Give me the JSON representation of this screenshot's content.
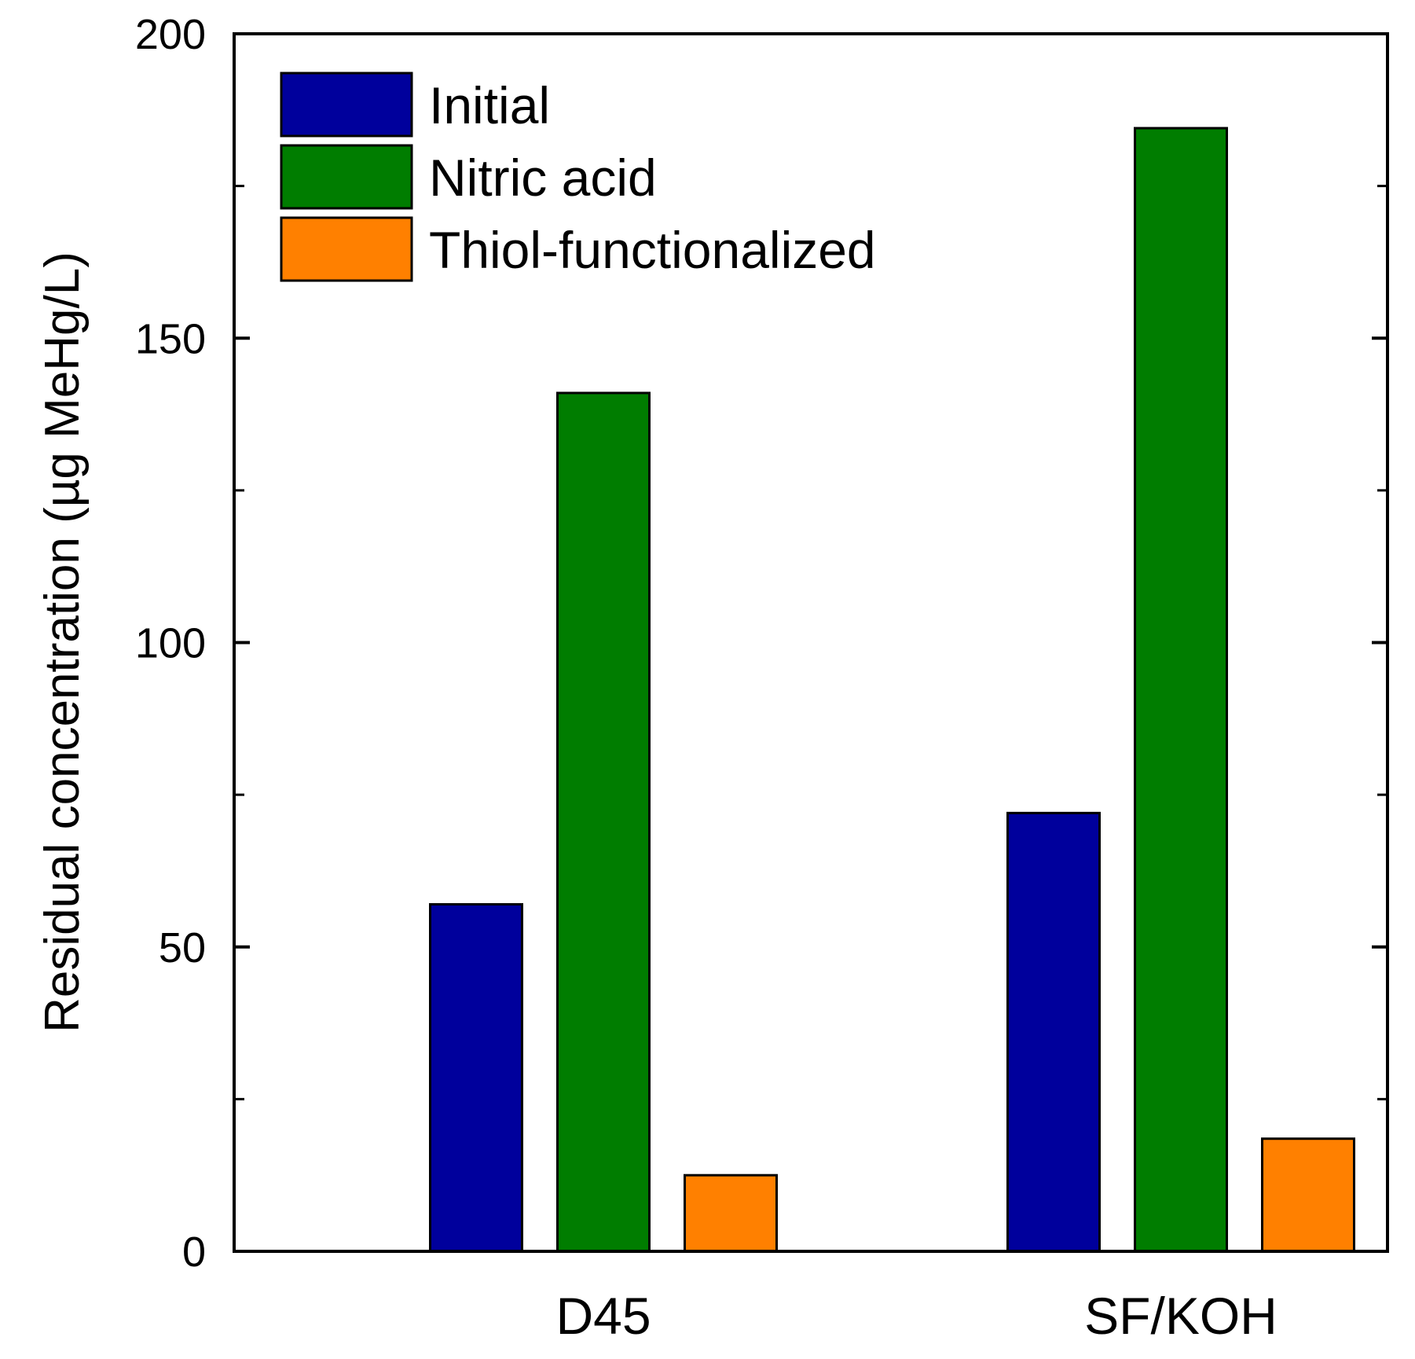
{
  "chart_data": {
    "type": "bar",
    "title": "",
    "xlabel": "",
    "ylabel": "Residual concentration (µg MeHg/L)",
    "ylim": [
      0,
      200
    ],
    "major_ticks": [
      0,
      50,
      100,
      150,
      200
    ],
    "minor_ticks": [
      25,
      75,
      125,
      175
    ],
    "tick_labels": [
      "0",
      "50",
      "100",
      "150",
      "200"
    ],
    "categories": [
      "D45",
      "SF/KOH"
    ],
    "series": [
      {
        "name": "Initial",
        "color": "#00009c",
        "values": [
          57,
          72
        ]
      },
      {
        "name": "Nitric acid",
        "color": "#007d00",
        "values": [
          141,
          184.5
        ]
      },
      {
        "name": "Thiol-functionalized",
        "color": "#ff8000",
        "values": [
          12.5,
          18.5
        ]
      }
    ],
    "legend": {
      "position": "top-left"
    },
    "grid": false
  }
}
